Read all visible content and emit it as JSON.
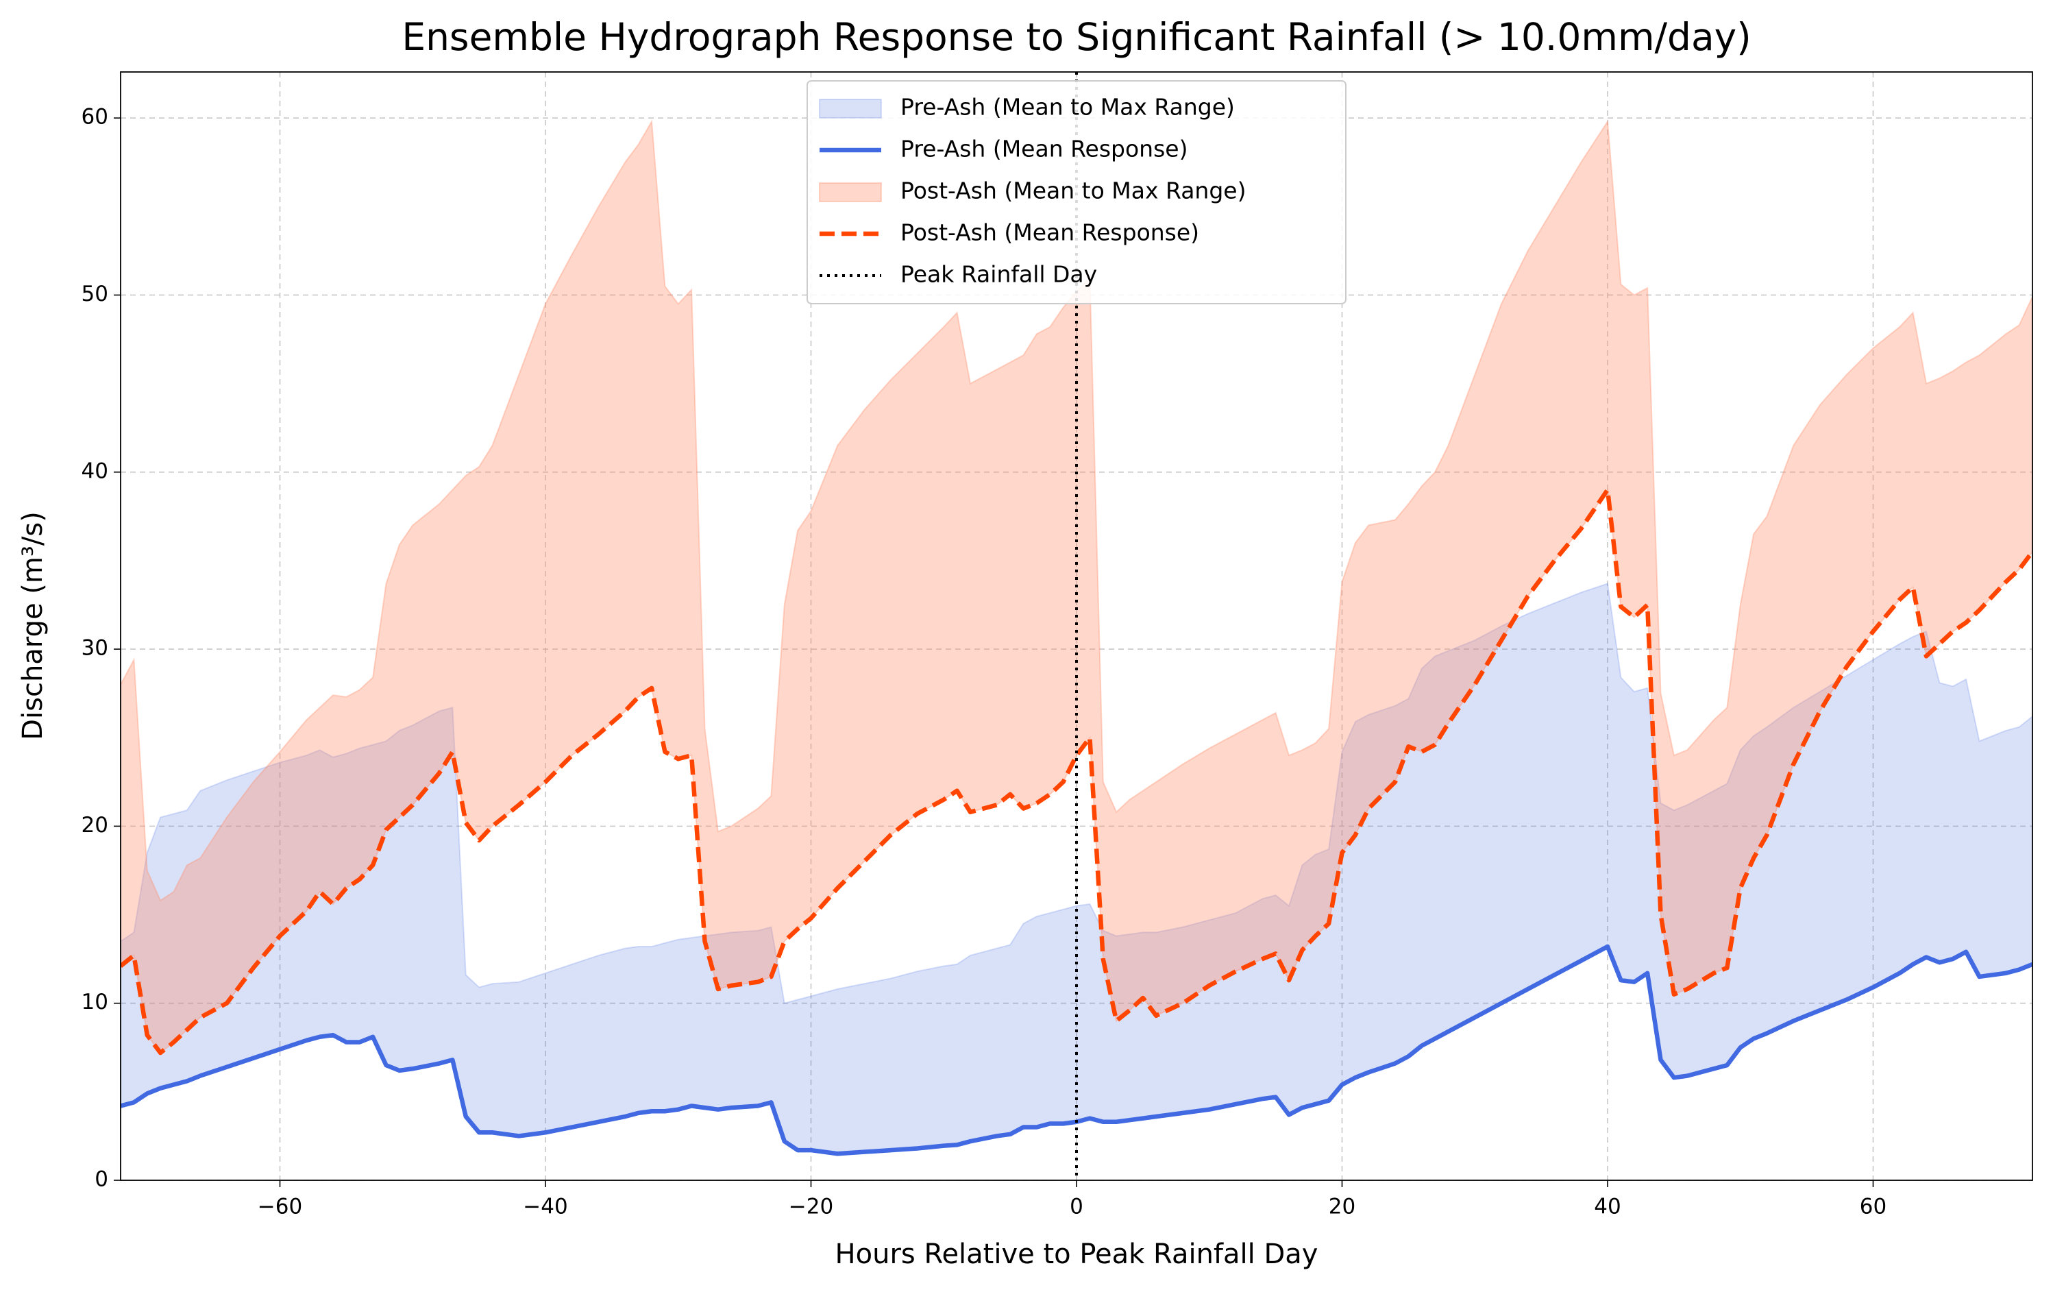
{
  "chart_data": {
    "type": "line",
    "title": "Ensemble Hydrograph Response to Significant Rainfall (> 10.0mm/day)",
    "xlabel": "Hours Relative to Peak Rainfall Day",
    "ylabel": "Discharge (m³/s)",
    "xlim": [
      -72,
      72
    ],
    "ylim": [
      0,
      62.6
    ],
    "xticks": [
      {
        "value": -60,
        "label": "−60"
      },
      {
        "value": -40,
        "label": "−40"
      },
      {
        "value": -20,
        "label": "−20"
      },
      0,
      20,
      40,
      60
    ],
    "yticks": [
      0,
      10,
      20,
      30,
      40,
      50,
      60
    ],
    "grid": true,
    "legend": "upper center",
    "x": [
      -72,
      -71,
      -70,
      -69,
      -68,
      -67,
      -66,
      -64,
      -62,
      -60,
      -58,
      -57,
      -56,
      -55,
      -54,
      -53,
      -52,
      -51,
      -50,
      -48,
      -47,
      -46,
      -45,
      -44,
      -42,
      -40,
      -38,
      -36,
      -34,
      -33,
      -32,
      -31,
      -30,
      -29,
      -28,
      -27,
      -26,
      -24,
      -23,
      -22,
      -21,
      -20,
      -18,
      -16,
      -14,
      -12,
      -10,
      -9,
      -8,
      -6,
      -5,
      -4,
      -3,
      -2,
      -1,
      0,
      1,
      2,
      3,
      4,
      5,
      6,
      8,
      10,
      12,
      14,
      15,
      16,
      17,
      18,
      19,
      20,
      21,
      22,
      24,
      25,
      26,
      27,
      28,
      30,
      32,
      34,
      36,
      38,
      40,
      41,
      42,
      43,
      44,
      45,
      46,
      48,
      49,
      50,
      51,
      52,
      54,
      56,
      58,
      60,
      62,
      63,
      64,
      65,
      66,
      67,
      68,
      70,
      71,
      72
    ],
    "series": [
      {
        "name": "Pre-Ash (Mean to Max Range)",
        "kind": "fill",
        "color": "#4169e1",
        "alpha": 0.2,
        "values": [
          13.5,
          14,
          18.5,
          20.5,
          20.7,
          20.9,
          22,
          22.6,
          23.1,
          23.6,
          24,
          24.3,
          23.9,
          24.1,
          24.4,
          24.6,
          24.8,
          25.4,
          25.7,
          26.5,
          26.7,
          11.6,
          10.9,
          11.1,
          11.2,
          11.7,
          12.2,
          12.7,
          13.1,
          13.2,
          13.2,
          13.4,
          13.6,
          13.7,
          13.8,
          13.9,
          14,
          14.1,
          14.3,
          10,
          10.2,
          10.4,
          10.8,
          11.1,
          11.4,
          11.8,
          12.1,
          12.2,
          12.7,
          13.1,
          13.3,
          14.5,
          14.9,
          15.1,
          15.3,
          15.5,
          15.6,
          14.1,
          13.8,
          13.9,
          14,
          14,
          14.3,
          14.7,
          15.1,
          15.9,
          16.1,
          15.5,
          17.8,
          18.4,
          18.7,
          24.2,
          25.9,
          26.3,
          26.8,
          27.2,
          28.9,
          29.6,
          29.9,
          30.5,
          31.3,
          32,
          32.6,
          33.2,
          33.7,
          28.4,
          27.6,
          27.8,
          21.3,
          20.9,
          21.2,
          22,
          22.4,
          24.3,
          25.1,
          25.6,
          26.7,
          27.6,
          28.5,
          29.4,
          30.3,
          30.7,
          31,
          28.1,
          27.9,
          28.3,
          24.8,
          25.4,
          25.6,
          26.2
        ]
      },
      {
        "name": "Pre-Ash (Mean Response)",
        "kind": "line",
        "linestyle": "solid",
        "color": "#4169e1",
        "values": [
          4.2,
          4.4,
          4.9,
          5.2,
          5.4,
          5.6,
          5.9,
          6.4,
          6.9,
          7.4,
          7.9,
          8.1,
          8.2,
          7.8,
          7.8,
          8.1,
          6.5,
          6.2,
          6.3,
          6.6,
          6.8,
          3.6,
          2.7,
          2.7,
          2.5,
          2.7,
          3,
          3.3,
          3.6,
          3.8,
          3.9,
          3.9,
          4,
          4.2,
          4.1,
          4,
          4.1,
          4.2,
          4.4,
          2.2,
          1.7,
          1.7,
          1.5,
          1.6,
          1.7,
          1.8,
          1.95,
          2,
          2.2,
          2.5,
          2.6,
          3,
          3,
          3.2,
          3.2,
          3.3,
          3.5,
          3.3,
          3.3,
          3.4,
          3.5,
          3.6,
          3.8,
          4,
          4.3,
          4.6,
          4.7,
          3.7,
          4.1,
          4.3,
          4.5,
          5.4,
          5.8,
          6.1,
          6.6,
          7,
          7.6,
          8,
          8.4,
          9.2,
          10,
          10.8,
          11.6,
          12.4,
          13.2,
          11.3,
          11.2,
          11.7,
          6.8,
          5.8,
          5.9,
          6.3,
          6.5,
          7.5,
          8,
          8.3,
          9,
          9.6,
          10.2,
          10.9,
          11.7,
          12.2,
          12.6,
          12.3,
          12.5,
          12.9,
          11.5,
          11.7,
          11.9,
          12.2
        ]
      },
      {
        "name": "Post-Ash (Mean to Max Range)",
        "kind": "fill",
        "color": "#ff8c69",
        "alpha": 0.35,
        "values": [
          28,
          29.4,
          17.5,
          15.8,
          16.3,
          17.8,
          18.2,
          20.5,
          22.5,
          24.2,
          26,
          26.7,
          27.4,
          27.3,
          27.7,
          28.4,
          33.7,
          35.9,
          37,
          38.2,
          39,
          39.8,
          40.3,
          41.5,
          45.5,
          49.5,
          52.3,
          55,
          57.5,
          58.5,
          59.8,
          50.5,
          49.5,
          50.3,
          25.5,
          19.7,
          20,
          21,
          21.7,
          32.5,
          36.7,
          37.8,
          41.5,
          43.5,
          45.2,
          46.7,
          48.2,
          49,
          45,
          45.8,
          46.2,
          46.6,
          47.8,
          48.2,
          49.3,
          50.2,
          51,
          22.5,
          20.8,
          21.5,
          22,
          22.5,
          23.5,
          24.4,
          25.2,
          26,
          26.4,
          24,
          24.3,
          24.7,
          25.5,
          33.8,
          36,
          37,
          37.3,
          38.2,
          39.2,
          40,
          41.5,
          45.5,
          49.5,
          52.5,
          55,
          57.5,
          59.8,
          50.6,
          50,
          50.4,
          27.5,
          24,
          24.3,
          26,
          26.7,
          32.5,
          36.5,
          37.5,
          41.5,
          43.8,
          45.5,
          47,
          48.2,
          49,
          45,
          45.3,
          45.7,
          46.2,
          46.6,
          47.8,
          48.3,
          49.9
        ]
      },
      {
        "name": "Post-Ash (Mean Response)",
        "kind": "line",
        "linestyle": "dashed",
        "color": "#ff4500",
        "values": [
          12.1,
          12.7,
          8.2,
          7.2,
          7.8,
          8.5,
          9.2,
          10,
          12,
          13.8,
          15.2,
          16.3,
          15.6,
          16.5,
          17,
          17.8,
          19.8,
          20.5,
          21.2,
          23,
          24.2,
          20.2,
          19.2,
          20,
          21.2,
          22.5,
          24,
          25.2,
          26.5,
          27.3,
          27.8,
          24.2,
          23.8,
          24,
          13.5,
          10.8,
          11,
          11.2,
          11.5,
          13.5,
          14.2,
          14.8,
          16.5,
          18,
          19.5,
          20.7,
          21.5,
          22,
          20.8,
          21.2,
          21.8,
          21,
          21.3,
          21.8,
          22.5,
          24,
          25,
          12.5,
          9,
          9.6,
          10.3,
          9.3,
          10,
          11,
          11.8,
          12.5,
          12.8,
          11.3,
          13,
          13.8,
          14.5,
          18.5,
          19.5,
          21,
          22.5,
          24.5,
          24.2,
          24.6,
          25.8,
          28,
          30.5,
          33,
          35,
          36.8,
          39,
          32.4,
          31.8,
          32.5,
          15,
          10.5,
          10.8,
          11.7,
          12,
          16.5,
          18.2,
          19.5,
          23.5,
          26.5,
          29,
          31,
          32.8,
          33.5,
          29.6,
          30.3,
          31,
          31.5,
          32.2,
          33.8,
          34.5,
          35.5
        ]
      }
    ],
    "vlines": [
      {
        "name": "Peak Rainfall Day",
        "x": 0,
        "linestyle": "dotted",
        "color": "#000000"
      }
    ]
  }
}
